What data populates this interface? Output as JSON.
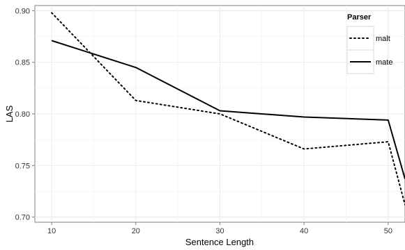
{
  "chart_data": {
    "type": "line",
    "title": "",
    "xlabel": "Sentence Length",
    "ylabel": "LAS",
    "xlim": [
      8,
      52
    ],
    "ylim": [
      0.695,
      0.905
    ],
    "x_ticks": [
      10,
      20,
      30,
      40,
      50
    ],
    "y_ticks": [
      0.7,
      0.75,
      0.8,
      0.85,
      0.9
    ],
    "x_tick_labels": [
      "10",
      "20",
      "30",
      "40",
      "50"
    ],
    "y_tick_labels": [
      "0.70",
      "0.75",
      "0.80",
      "0.85",
      "0.90"
    ],
    "grid": true,
    "legend": {
      "title": "Parser",
      "position": "top-right"
    },
    "series": [
      {
        "name": "malt",
        "style": "dotted",
        "color": "#000000",
        "points": [
          {
            "x": 10,
            "y": 0.898
          },
          {
            "x": 20,
            "y": 0.813
          },
          {
            "x": 30,
            "y": 0.8
          },
          {
            "x": 40,
            "y": 0.766
          },
          {
            "x": 50,
            "y": 0.773
          },
          {
            "x": 52,
            "y": 0.712
          }
        ]
      },
      {
        "name": "mate",
        "style": "solid",
        "color": "#000000",
        "points": [
          {
            "x": 10,
            "y": 0.871
          },
          {
            "x": 20,
            "y": 0.845
          },
          {
            "x": 30,
            "y": 0.803
          },
          {
            "x": 40,
            "y": 0.797
          },
          {
            "x": 50,
            "y": 0.794
          },
          {
            "x": 52,
            "y": 0.737
          }
        ]
      }
    ]
  }
}
